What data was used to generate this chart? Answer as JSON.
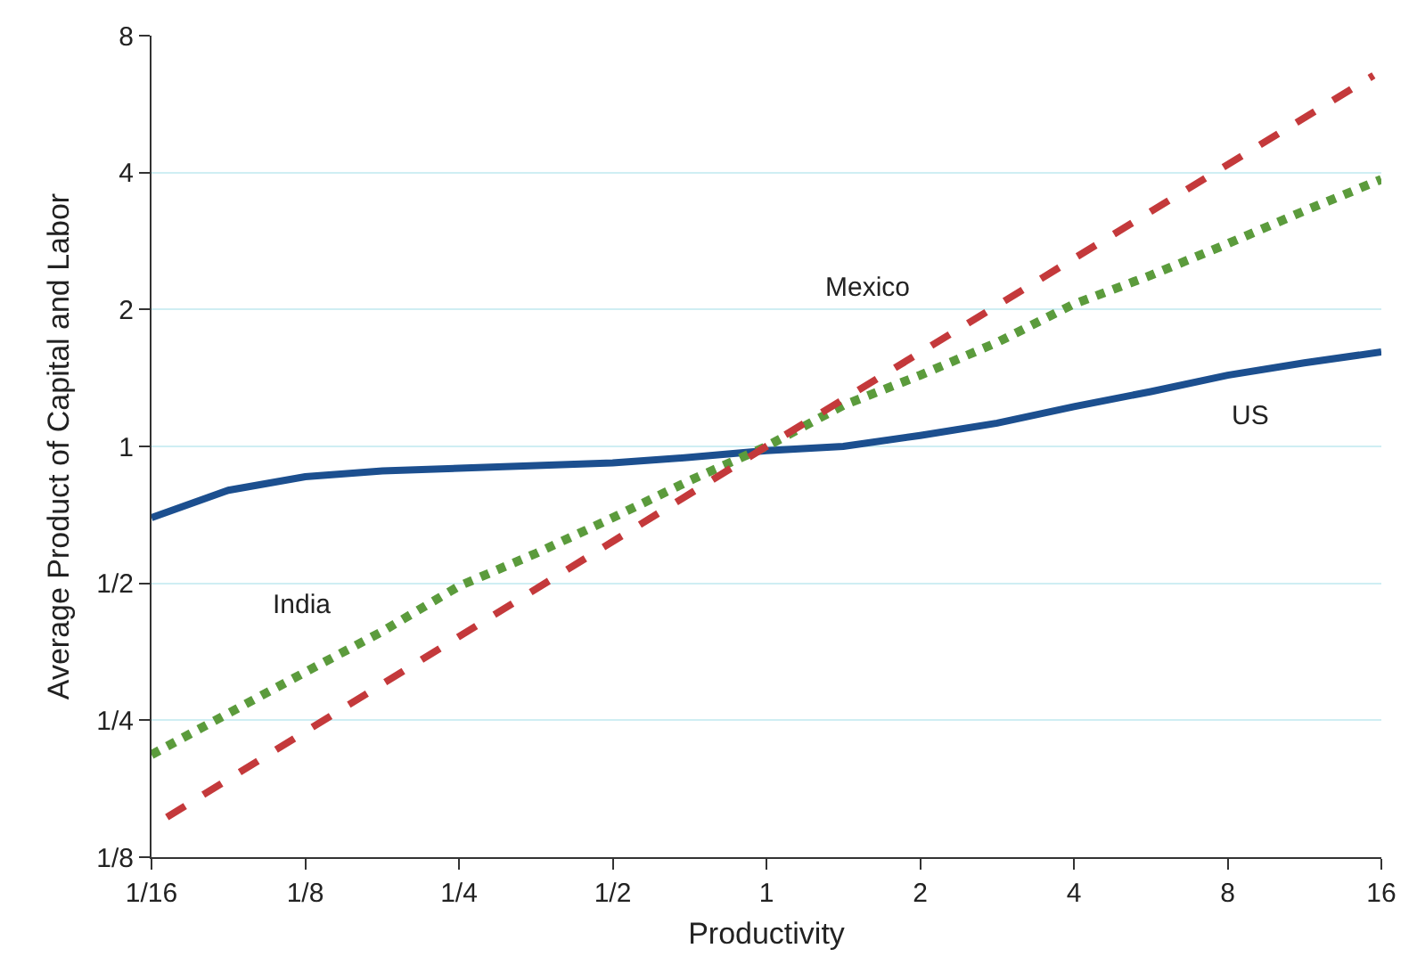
{
  "chart_data": {
    "type": "line",
    "xlabel": "Productivity",
    "ylabel": "Average Product of Capital and Labor",
    "log": "xy",
    "grid": "y",
    "legend": false,
    "xlim": [
      0.0625,
      16
    ],
    "ylim": [
      0.125,
      8
    ],
    "xticks": [
      {
        "value": 0.0625,
        "label": "1/16"
      },
      {
        "value": 0.125,
        "label": "1/8"
      },
      {
        "value": 0.25,
        "label": "1/4"
      },
      {
        "value": 0.5,
        "label": "1/2"
      },
      1,
      2,
      4,
      8,
      16
    ],
    "yticks": [
      {
        "value": 0.125,
        "label": "1/8"
      },
      {
        "value": 0.25,
        "label": "1/4"
      },
      {
        "value": 0.5,
        "label": "1/2"
      },
      1,
      2,
      4,
      8
    ],
    "x": [
      0.0625,
      0.0884,
      0.125,
      0.177,
      0.25,
      0.354,
      0.5,
      0.707,
      1,
      1.414,
      2,
      2.83,
      4,
      5.66,
      8,
      11.3,
      16
    ],
    "series": [
      {
        "name": "US",
        "color": "#1c4f8f",
        "line_style": "solid",
        "values": [
          0.697,
          0.801,
          0.858,
          0.883,
          0.895,
          0.908,
          0.92,
          0.946,
          0.979,
          1,
          1.057,
          1.125,
          1.223,
          1.32,
          1.434,
          1.526,
          1.613
        ]
      },
      {
        "name": "India",
        "color": "#5b9b3c",
        "line_style": "dotted",
        "values": [
          0.21,
          0.259,
          0.319,
          0.392,
          0.493,
          0.582,
          0.697,
          0.841,
          1,
          1.231,
          1.434,
          1.693,
          2.056,
          2.378,
          2.79,
          3.294,
          3.864
        ]
      },
      {
        "name": "Mexico",
        "color": "#c4393b",
        "line_style": "dashed",
        "x": [
          0.067,
          1,
          15.45
        ],
        "values": [
          0.153,
          1,
          6.54
        ]
      }
    ]
  }
}
